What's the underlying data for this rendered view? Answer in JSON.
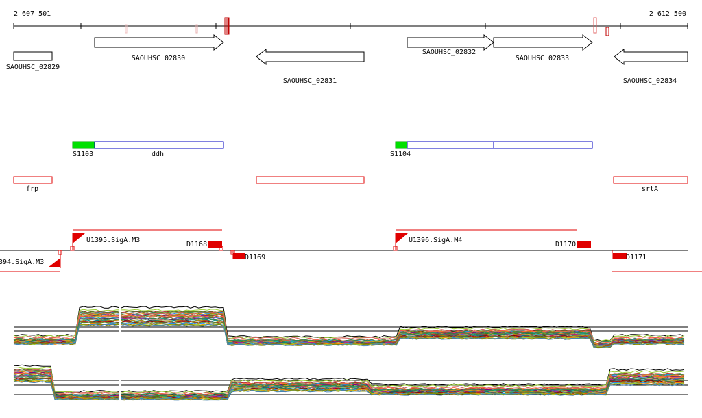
{
  "coords": {
    "start": "2 607 501",
    "end": "2 612 500"
  },
  "genes": [
    {
      "id": "SAOUHSC_02829",
      "strand": "none"
    },
    {
      "id": "SAOUHSC_02830",
      "strand": "+"
    },
    {
      "id": "SAOUHSC_02831",
      "strand": "-"
    },
    {
      "id": "SAOUHSC_02832",
      "strand": "+"
    },
    {
      "id": "SAOUHSC_02833",
      "strand": "+"
    },
    {
      "id": "SAOUHSC_02834",
      "strand": "-"
    }
  ],
  "segments": [
    {
      "label": "S1103"
    },
    {
      "label": "ddh"
    },
    {
      "label": "S1104"
    }
  ],
  "gene_names": [
    {
      "label": "frp"
    },
    {
      "label": "srtA"
    }
  ],
  "features": [
    {
      "label": "U1395.SigA.M3"
    },
    {
      "label": "D1168"
    },
    {
      "label": "D1169"
    },
    {
      "label": "U1396.SigA.M4"
    },
    {
      "label": "D1170"
    },
    {
      "label": "D1171"
    },
    {
      "label": "394.SigA.M3"
    }
  ],
  "colors": {
    "axis": "#000000",
    "gene_outline": "#000000",
    "segment_green": "#00e000",
    "segment_blue": "#0000c0",
    "feature_red": "#e00000",
    "gap_red": "#b03030"
  }
}
